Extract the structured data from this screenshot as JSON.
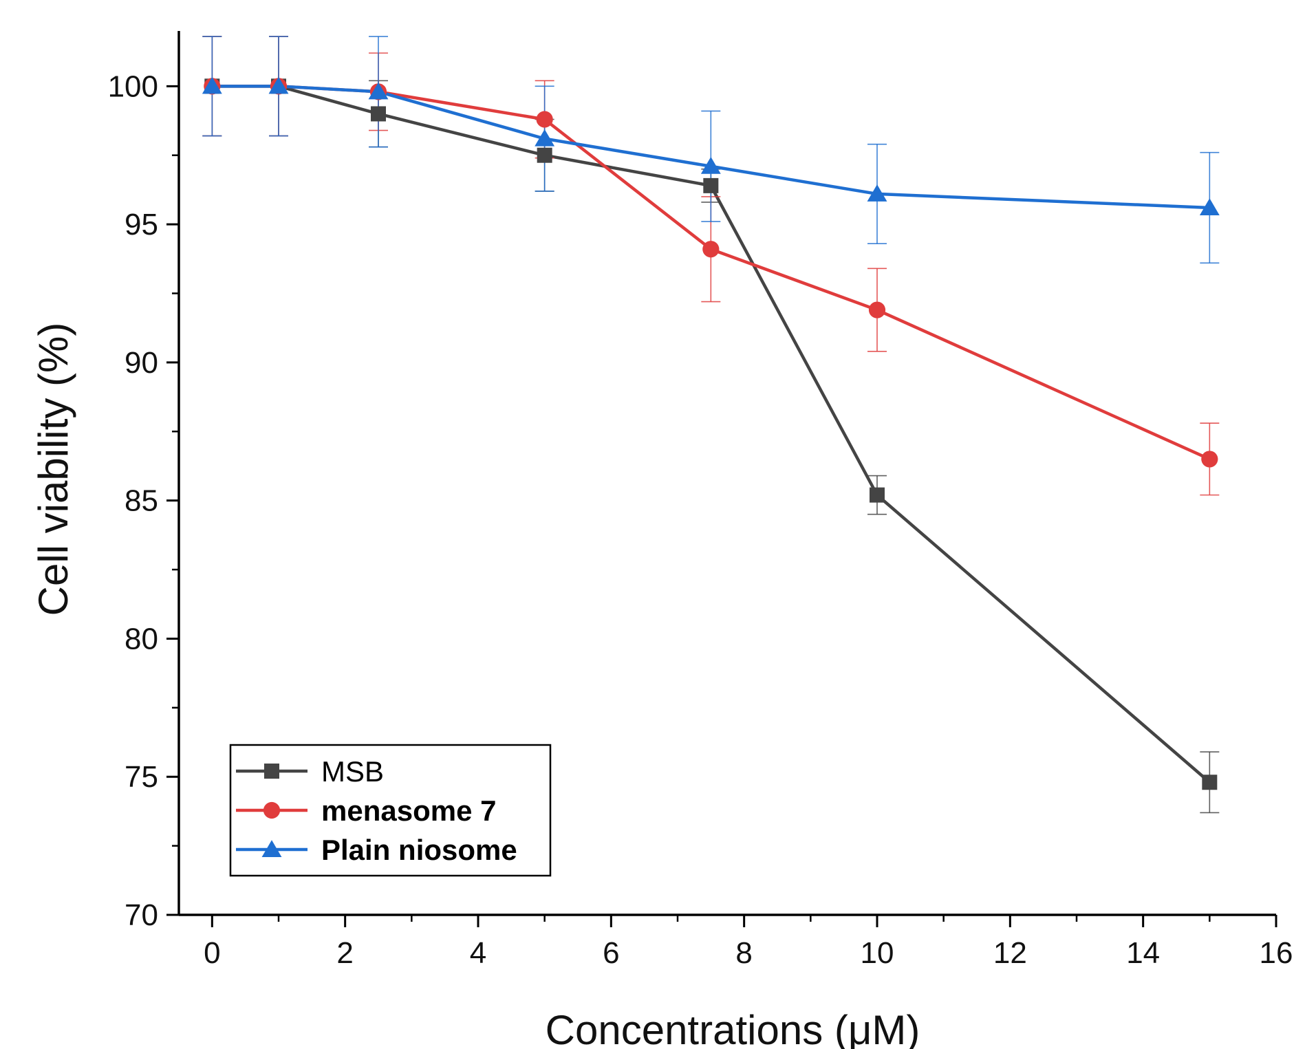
{
  "chart_data": {
    "type": "line",
    "title": "",
    "xlabel": "Concentrations (μM)",
    "ylabel": "Cell viability (%)",
    "xlim": [
      -0.5,
      16
    ],
    "ylim": [
      70,
      102
    ],
    "xticks": [
      0,
      2,
      4,
      6,
      8,
      10,
      12,
      14,
      16
    ],
    "xtick_labels": [
      "0",
      "2",
      "4",
      "6",
      "8",
      "10",
      "12",
      "14",
      "16"
    ],
    "yticks": [
      70,
      75,
      80,
      85,
      90,
      95,
      100
    ],
    "ytick_labels": [
      "70",
      "75",
      "80",
      "85",
      "90",
      "95",
      "100"
    ],
    "grid": false,
    "legend_position": "bottom-left",
    "series": [
      {
        "name": "MSB",
        "color": "#444444",
        "marker": "square",
        "x": [
          0,
          1,
          2.5,
          5,
          7.5,
          10,
          15
        ],
        "y": [
          100,
          100,
          99,
          97.5,
          96.4,
          85.2,
          74.8
        ],
        "err": [
          1.8,
          1.8,
          1.2,
          1.3,
          0.6,
          0.7,
          1.1
        ]
      },
      {
        "name": "menasome 7",
        "color": "#e03c3c",
        "marker": "circle",
        "x": [
          0,
          1,
          2.5,
          5,
          7.5,
          10,
          15
        ],
        "y": [
          100,
          100,
          99.8,
          98.8,
          94.1,
          91.9,
          86.5
        ],
        "err": [
          1.8,
          1.8,
          1.4,
          1.4,
          1.9,
          1.5,
          1.3
        ]
      },
      {
        "name": "Plain niosome",
        "color": "#1f6fd1",
        "marker": "triangle",
        "x": [
          0,
          1,
          2.5,
          5,
          7.5,
          10,
          15
        ],
        "y": [
          100,
          100,
          99.8,
          98.1,
          97.1,
          96.1,
          95.6
        ],
        "err": [
          1.8,
          1.8,
          2.0,
          1.9,
          2.0,
          1.8,
          2.0
        ]
      }
    ]
  }
}
